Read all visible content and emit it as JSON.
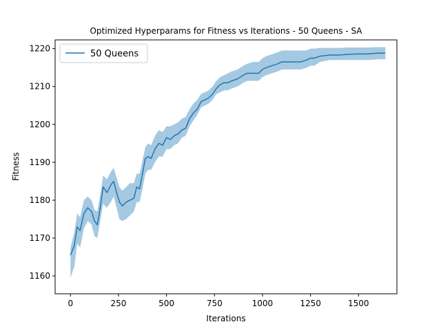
{
  "chart_data": {
    "type": "line",
    "title": "Optimized Hyperparams for Fitness vs Iterations - 50 Queens - SA",
    "xlabel": "Iterations",
    "ylabel": "Fitness",
    "xlim": [
      -80,
      1700
    ],
    "ylim": [
      1155.3,
      1222.3
    ],
    "xticks": [
      0,
      250,
      500,
      750,
      1000,
      1250,
      1500
    ],
    "yticks": [
      1160,
      1170,
      1180,
      1190,
      1200,
      1210,
      1220
    ],
    "xtick_labels": [
      "0",
      "250",
      "500",
      "750",
      "1000",
      "1250",
      "1500"
    ],
    "ytick_labels": [
      "1160",
      "1170",
      "1180",
      "1190",
      "1200",
      "1210",
      "1220"
    ],
    "grid": false,
    "legend": {
      "placement": "top-left",
      "entries": [
        "50 Queens"
      ]
    },
    "colors": {
      "line": "#1f77b4",
      "band": "#1f77b4"
    },
    "series": [
      {
        "name": "50 Queens",
        "x": [
          0,
          20,
          35,
          50,
          70,
          90,
          110,
          125,
          140,
          155,
          170,
          190,
          210,
          225,
          240,
          255,
          270,
          290,
          310,
          330,
          345,
          360,
          375,
          390,
          405,
          420,
          440,
          460,
          480,
          500,
          520,
          540,
          560,
          580,
          600,
          620,
          640,
          660,
          680,
          700,
          720,
          740,
          760,
          780,
          800,
          820,
          840,
          870,
          900,
          920,
          950,
          980,
          1000,
          1020,
          1050,
          1080,
          1100,
          1120,
          1150,
          1200,
          1230,
          1250,
          1270,
          1300,
          1350,
          1400,
          1450,
          1500,
          1550,
          1600,
          1640
        ],
        "mean": [
          1165.5,
          1168.0,
          1173.0,
          1172.0,
          1176.5,
          1178.0,
          1177.0,
          1174.5,
          1173.5,
          1178.0,
          1183.5,
          1182.0,
          1184.0,
          1185.0,
          1182.0,
          1179.5,
          1178.5,
          1179.5,
          1180.0,
          1180.5,
          1183.5,
          1183.0,
          1187.0,
          1191.0,
          1191.5,
          1191.0,
          1193.5,
          1195.0,
          1194.5,
          1196.5,
          1196.0,
          1197.0,
          1197.5,
          1198.5,
          1199.0,
          1201.5,
          1203.0,
          1204.0,
          1206.0,
          1206.5,
          1207.0,
          1208.0,
          1209.5,
          1210.5,
          1211.0,
          1211.0,
          1211.5,
          1212.0,
          1213.0,
          1213.5,
          1213.5,
          1213.5,
          1214.5,
          1215.0,
          1215.5,
          1216.0,
          1216.5,
          1216.5,
          1216.5,
          1216.5,
          1217.0,
          1217.5,
          1217.5,
          1218.0,
          1218.3,
          1218.3,
          1218.5,
          1218.6,
          1218.6,
          1218.8,
          1218.8
        ],
        "lower": [
          1159.5,
          1162.5,
          1168.5,
          1167.5,
          1172.5,
          1174.5,
          1173.5,
          1170.5,
          1170.0,
          1174.5,
          1179.0,
          1178.0,
          1179.5,
          1181.0,
          1178.0,
          1175.0,
          1174.5,
          1175.0,
          1176.0,
          1177.0,
          1179.5,
          1179.5,
          1183.0,
          1187.0,
          1188.0,
          1188.0,
          1190.0,
          1191.5,
          1191.5,
          1193.5,
          1193.5,
          1194.5,
          1195.0,
          1196.5,
          1197.0,
          1199.5,
          1201.0,
          1202.5,
          1204.5,
          1205.0,
          1205.5,
          1206.5,
          1208.0,
          1208.5,
          1209.0,
          1209.0,
          1209.5,
          1210.0,
          1211.0,
          1211.5,
          1211.5,
          1211.5,
          1212.5,
          1213.0,
          1213.5,
          1214.0,
          1214.5,
          1214.5,
          1214.5,
          1214.5,
          1215.0,
          1215.5,
          1215.5,
          1216.5,
          1217.0,
          1217.0,
          1217.0,
          1217.0,
          1217.0,
          1217.2,
          1217.2
        ],
        "upper": [
          1167.5,
          1171.5,
          1176.5,
          1175.5,
          1180.0,
          1181.0,
          1180.0,
          1177.5,
          1177.0,
          1181.5,
          1186.5,
          1185.5,
          1187.5,
          1188.5,
          1186.0,
          1183.5,
          1182.5,
          1183.5,
          1184.5,
          1184.5,
          1187.0,
          1187.0,
          1190.5,
          1194.0,
          1195.0,
          1194.5,
          1197.0,
          1198.5,
          1198.0,
          1199.5,
          1199.5,
          1200.0,
          1200.5,
          1201.5,
          1202.0,
          1204.0,
          1205.5,
          1206.5,
          1208.0,
          1208.5,
          1209.0,
          1210.0,
          1211.5,
          1212.5,
          1213.0,
          1213.5,
          1214.0,
          1214.5,
          1215.5,
          1216.0,
          1216.5,
          1216.5,
          1217.5,
          1218.0,
          1218.5,
          1219.0,
          1219.5,
          1219.5,
          1219.5,
          1219.5,
          1219.5,
          1220.0,
          1220.0,
          1220.2,
          1220.2,
          1220.2,
          1220.3,
          1220.3,
          1220.3,
          1220.4,
          1220.4
        ]
      }
    ]
  }
}
